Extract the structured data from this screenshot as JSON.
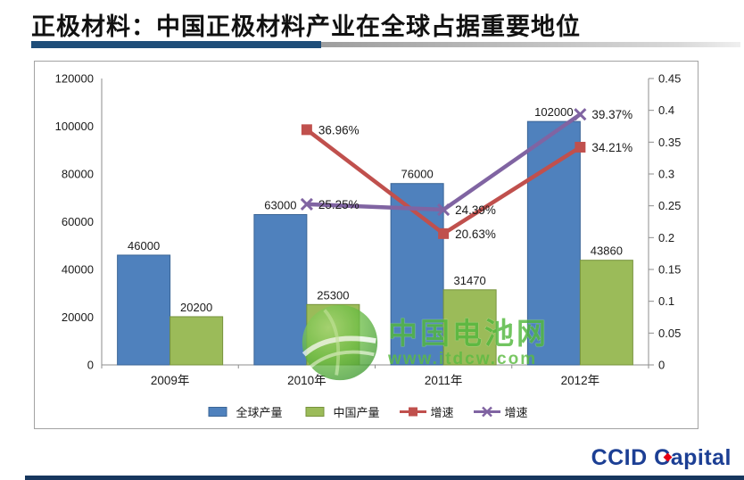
{
  "page": {
    "title": "正极材料：中国正极材料产业在全球占据重要地位",
    "accent_color": "#1F4E79"
  },
  "watermark": {
    "name": "中国电池网",
    "url": "www.itdcw.com",
    "color": "#53B83E",
    "icon": "globe-icon"
  },
  "footer": {
    "logo_word1": "CCID",
    "logo_c_letter": "C",
    "logo_rest": "apital",
    "logo_color": "#1C3F94",
    "bar_color": "#17375E"
  },
  "chart_data": {
    "type": "bar",
    "combo": "bar+line",
    "categories": [
      "2009年",
      "2010年",
      "2011年",
      "2012年"
    ],
    "series": [
      {
        "name": "全球产量",
        "type": "bar",
        "axis": "left",
        "color": "#4F81BD",
        "border": "#3B6596",
        "values": [
          46000,
          63000,
          76000,
          102000
        ]
      },
      {
        "name": "中国产量",
        "type": "bar",
        "axis": "left",
        "color": "#9BBB59",
        "border": "#77933C",
        "values": [
          20200,
          25300,
          31470,
          43860
        ]
      },
      {
        "name": "增速",
        "type": "line",
        "axis": "right",
        "color": "#C0504D",
        "marker": "square",
        "values": [
          null,
          0.3696,
          0.2063,
          0.3421
        ],
        "labels": [
          "",
          "36.96%",
          "20.63%",
          "34.21%"
        ]
      },
      {
        "name": "增速",
        "type": "line",
        "axis": "right",
        "color": "#8064A2",
        "marker": "x",
        "values": [
          null,
          0.2525,
          0.2439,
          0.3937
        ],
        "labels": [
          "",
          "25.25%",
          "24.39%",
          "39.37%"
        ]
      }
    ],
    "left_axis": {
      "min": 0,
      "max": 120000,
      "step": 20000
    },
    "right_axis": {
      "min": 0,
      "max": 0.45,
      "step": 0.05
    },
    "grid": false,
    "legend_position": "bottom",
    "axis_color": "#8E8E8E",
    "label_color": "#1a1a1a"
  }
}
